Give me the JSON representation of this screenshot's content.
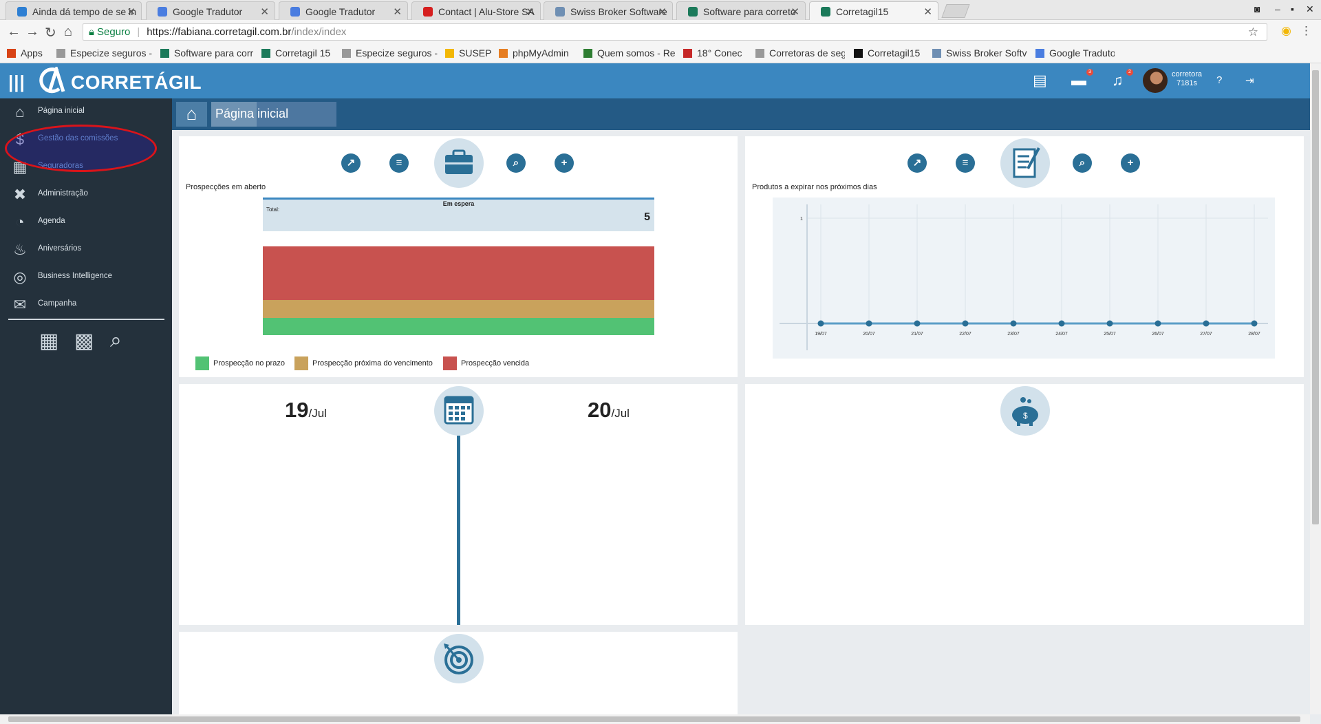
{
  "browser": {
    "tabs": [
      {
        "title": "Ainda dá tempo de se in",
        "fav": "#2d7fd3",
        "active": false
      },
      {
        "title": "Google Tradutor",
        "fav": "#4a7de0",
        "active": false
      },
      {
        "title": "Google Tradutor",
        "fav": "#4a7de0",
        "active": false
      },
      {
        "title": "Contact | Alu-Store SA",
        "fav": "#d61f1f",
        "active": false
      },
      {
        "title": "Swiss Broker Software",
        "fav": "#6f8fb3",
        "active": false
      },
      {
        "title": "Software para correto",
        "fav": "#1b7a5a",
        "active": false
      },
      {
        "title": "Corretagil15",
        "fav": "#1b7a5a",
        "active": true
      }
    ],
    "address": {
      "secure_label": "Seguro",
      "host": "https://fabiana.corretagil.com.br",
      "path": "/index/index"
    },
    "bookmarks": [
      {
        "label": "Apps",
        "color": "#d84315"
      },
      {
        "label": "Especize seguros -",
        "color": "#999999"
      },
      {
        "label": "Software para corr",
        "color": "#1b7a5a"
      },
      {
        "label": "Corretagil 15",
        "color": "#1b7a5a"
      },
      {
        "label": "Especize seguros -",
        "color": "#999999"
      },
      {
        "label": "SUSEP",
        "color": "#f2b705"
      },
      {
        "label": "phpMyAdmin",
        "color": "#e67e22"
      },
      {
        "label": "Quem somos - Re",
        "color": "#2e7d32"
      },
      {
        "label": "18° Conec",
        "color": "#c62828"
      },
      {
        "label": "Corretoras de segu",
        "color": "#999999"
      },
      {
        "label": "Corretagil15",
        "color": "#111111"
      },
      {
        "label": "Swiss Broker Softv",
        "color": "#6f8fb3"
      },
      {
        "label": "Google Tradutor",
        "color": "#4a7de0"
      }
    ]
  },
  "header": {
    "brand": "CORRETÁGIL",
    "badges": {
      "briefcase": "3",
      "bell": "2"
    },
    "user_name": "corretora",
    "user_time": "7181s"
  },
  "sidebar": {
    "items": [
      {
        "label": "Página inicial",
        "icon": "home-icon",
        "glyph": "⌂"
      },
      {
        "label": "Gestão das comissões",
        "icon": "money-bag-icon",
        "glyph": "$"
      },
      {
        "label": "Seguradoras",
        "icon": "building-icon",
        "glyph": "▦"
      },
      {
        "label": "Administração",
        "icon": "tools-icon",
        "glyph": "✖"
      },
      {
        "label": "Agenda",
        "icon": "alarm-clock-icon",
        "glyph": "◔"
      },
      {
        "label": "Aniversários",
        "icon": "cake-icon",
        "glyph": "♨"
      },
      {
        "label": "Business Intelligence",
        "icon": "bi-icon",
        "glyph": "◎"
      },
      {
        "label": "Campanha",
        "icon": "campaign-icon",
        "glyph": "✉"
      }
    ]
  },
  "breadcrumb": {
    "title": "Página inicial"
  },
  "prospeccoes": {
    "title": "Prospecções em aberto",
    "box_title": "Em espera",
    "total_label": "Total:",
    "total_value": "5",
    "legend": [
      {
        "label": "Prospecção no prazo",
        "color": "#52c274"
      },
      {
        "label": "Prospecção próxima do vencimento",
        "color": "#c9a25c"
      },
      {
        "label": "Prospecção vencida",
        "color": "#c8524f"
      }
    ]
  },
  "produtos": {
    "title": "Produtos a expirar nos próximos dias"
  },
  "chart_data": {
    "type": "line",
    "x": [
      "19/07",
      "20/07",
      "21/07",
      "22/07",
      "23/07",
      "24/07",
      "25/07",
      "26/07",
      "27/07",
      "28/07"
    ],
    "series": [
      {
        "values": [
          0,
          0,
          0,
          0,
          0,
          0,
          0,
          0,
          0,
          0
        ]
      }
    ],
    "yticks": [
      "1"
    ],
    "ylim": [
      0,
      1
    ],
    "grid": true
  },
  "agenda": {
    "date1_day": "19",
    "date1_month": "/Jul",
    "date2_day": "20",
    "date2_month": "/Jul"
  }
}
